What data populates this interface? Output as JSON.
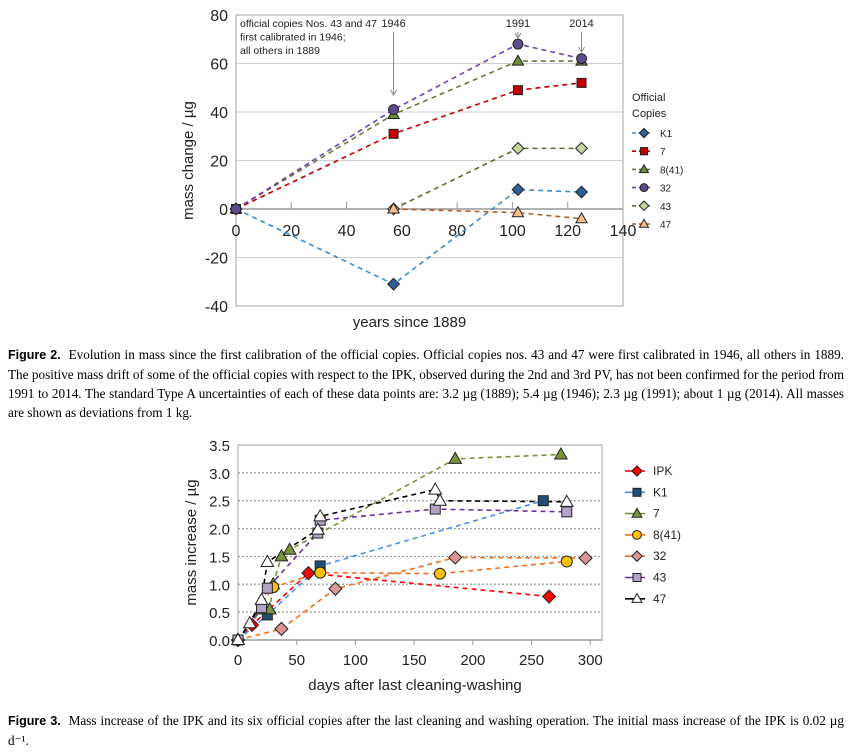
{
  "figure2": {
    "caption_label": "Figure 2.",
    "caption_text": "Evolution in mass since the first calibration of the official copies. Official copies nos. 43 and 47 were first calibrated in 1946, all others in 1889. The positive mass drift of some of the official copies with respect to the IPK, observed during the 2nd and 3rd PV, has not been confirmed for the period from 1991 to 2014. The standard Type A uncertainties of each of these data points are: 3.2 µg (1889); 5.4 µg (1946); 2.3 µg (1991); about 1 µg (2014). All masses are shown as deviations from 1 kg."
  },
  "figure3": {
    "caption_label": "Figure 3.",
    "caption_text": "Mass increase of the IPK and its six official copies after the last cleaning and washing operation. The initial mass increase of the IPK is 0.02 µg d⁻¹."
  },
  "chart_data": [
    {
      "type": "line",
      "xlabel": "years since 1889",
      "ylabel": "mass change / µg",
      "xlim": [
        0,
        140
      ],
      "ylim": [
        -40,
        80
      ],
      "xticks": [
        "0",
        "20",
        "40",
        "60",
        "80",
        "100",
        "120",
        "140"
      ],
      "yticks": [
        "-40",
        "-20",
        "0",
        "20",
        "40",
        "60",
        "80"
      ],
      "grid": "horizontal",
      "legend_title": "Official Copies",
      "legend_position": "right",
      "annotation": [
        "official copies Nos. 43 and 47",
        "first calibrated in 1946;",
        "all others in 1889"
      ],
      "year_markers": [
        {
          "label": "1946",
          "x": 57
        },
        {
          "label": "1991",
          "x": 102
        },
        {
          "label": "2014",
          "x": 125
        }
      ],
      "series": [
        {
          "name": "K1",
          "marker": "diamond",
          "fill": "#2f5d9a",
          "line": "#3a8fd0",
          "x": [
            0,
            57,
            102,
            125
          ],
          "y": [
            0,
            -31,
            8,
            7
          ]
        },
        {
          "name": "7",
          "marker": "square",
          "fill": "#c00000",
          "line": "#c00000",
          "x": [
            0,
            57,
            102,
            125
          ],
          "y": [
            0,
            31,
            49,
            52
          ]
        },
        {
          "name": "8(41)",
          "marker": "triangle",
          "fill": "#6b8e3a",
          "line": "#6b7a3a",
          "x": [
            0,
            57,
            102,
            125
          ],
          "y": [
            0,
            39,
            61,
            61
          ]
        },
        {
          "name": "32",
          "marker": "circle",
          "fill": "#5f4b8b",
          "line": "#7040b0",
          "x": [
            0,
            57,
            102,
            125
          ],
          "y": [
            0,
            41,
            68,
            62
          ]
        },
        {
          "name": "43",
          "marker": "diamond",
          "fill": "#c3d69b",
          "line": "#5a6e2a",
          "x": [
            57,
            102,
            125
          ],
          "y": [
            0,
            25,
            25
          ]
        },
        {
          "name": "47",
          "marker": "triangle",
          "fill": "#fac090",
          "line": "#b0602a",
          "x": [
            57,
            102,
            125
          ],
          "y": [
            0,
            -1.5,
            -4
          ]
        }
      ]
    },
    {
      "type": "line",
      "xlabel": "days after last cleaning-washing",
      "ylabel": "mass increase / µg",
      "xlim": [
        0,
        310
      ],
      "ylim": [
        0,
        3.5
      ],
      "xticks": [
        "0",
        "50",
        "100",
        "150",
        "200",
        "250",
        "300"
      ],
      "yticks": [
        "0.0",
        "0.5",
        "1.0",
        "1.5",
        "2.0",
        "2.5",
        "3.0",
        "3.5"
      ],
      "grid": "horizontal dotted",
      "legend_position": "right",
      "series": [
        {
          "name": "IPK",
          "marker": "diamond",
          "fill": "#ff0000",
          "line": "#ff0000",
          "x": [
            0,
            12,
            60,
            265
          ],
          "y": [
            0,
            0.27,
            1.2,
            0.78
          ]
        },
        {
          "name": "K1",
          "marker": "square",
          "fill": "#1f4e79",
          "line": "#4a90e2",
          "x": [
            0,
            25,
            70,
            260
          ],
          "y": [
            0,
            0.45,
            1.33,
            2.5
          ]
        },
        {
          "name": "7",
          "marker": "triangle",
          "fill": "#77933c",
          "line": "#77933c",
          "x": [
            0,
            20,
            27,
            30,
            37,
            44,
            185,
            275
          ],
          "y": [
            0,
            0.55,
            0.55,
            1.0,
            1.5,
            1.62,
            3.25,
            3.33
          ]
        },
        {
          "name": "8(41)",
          "marker": "circle",
          "fill": "#ffc000",
          "line": "#f07020",
          "x": [
            0,
            30,
            70,
            172,
            280
          ],
          "y": [
            0,
            0.95,
            1.21,
            1.19,
            1.41
          ]
        },
        {
          "name": "32",
          "marker": "diamond",
          "fill": "#d99694",
          "line": "#f07020",
          "x": [
            0,
            37,
            83,
            185,
            296
          ],
          "y": [
            0,
            0.2,
            0.92,
            1.48,
            1.47
          ]
        },
        {
          "name": "43",
          "marker": "square",
          "fill": "#b3a2c7",
          "line": "#7030a0",
          "x": [
            0,
            20,
            25,
            68,
            70,
            168,
            280
          ],
          "y": [
            0,
            0.58,
            0.93,
            1.92,
            2.15,
            2.35,
            2.3
          ]
        },
        {
          "name": "47",
          "marker": "triangle",
          "fill": "#ffffff",
          "line": "#000000",
          "x": [
            0,
            10,
            20,
            25,
            68,
            70,
            168,
            172,
            280
          ],
          "y": [
            0,
            0.3,
            0.72,
            1.4,
            1.98,
            2.22,
            2.7,
            2.5,
            2.48
          ]
        }
      ]
    }
  ]
}
